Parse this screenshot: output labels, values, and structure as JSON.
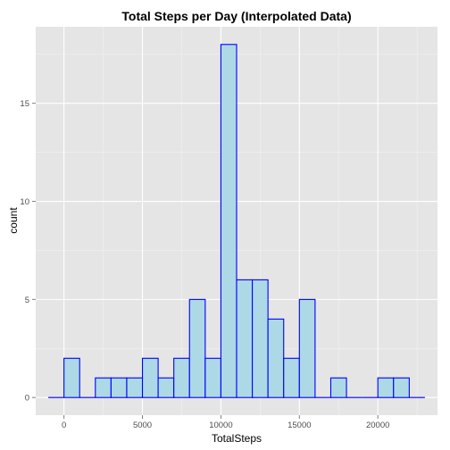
{
  "chart_data": {
    "type": "histogram",
    "title": "Total Steps per Day (Interpolated Data)",
    "xlabel": "TotalSteps",
    "ylabel": "count",
    "xlim": [
      -1800,
      23800
    ],
    "ylim": [
      -0.9,
      18.9
    ],
    "x_ticks": [
      0,
      5000,
      10000,
      15000,
      20000
    ],
    "x_tick_labels": [
      "0",
      "5000",
      "10000",
      "15000",
      "20000"
    ],
    "y_ticks": [
      0,
      5,
      10,
      15
    ],
    "y_tick_labels": [
      "0",
      "5",
      "10",
      "15"
    ],
    "bin_width": 1000,
    "bin_edges_start": -1000,
    "counts": [
      0,
      2,
      0,
      1,
      1,
      1,
      2,
      1,
      2,
      5,
      2,
      18,
      6,
      6,
      4,
      2,
      5,
      0,
      1,
      0,
      0,
      1,
      1,
      0
    ],
    "grid": true,
    "legend": "none",
    "colors": {
      "panel_background": "#e5e5e5",
      "grid_major": "#ffffff",
      "grid_minor": "#f2f2f2",
      "bar_fill": "#add8e6",
      "bar_outline": "#0000ff",
      "tick_label": "#4d4d4d",
      "tick_mark": "#7f7f7f"
    }
  }
}
